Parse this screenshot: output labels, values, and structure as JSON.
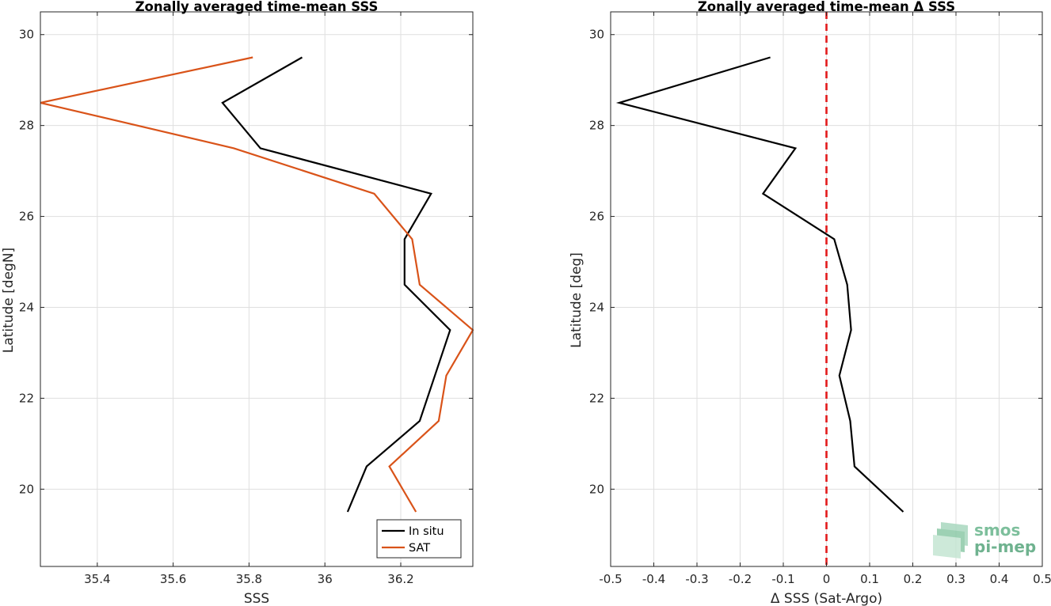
{
  "chart_data": [
    {
      "type": "line",
      "title": "Zonally averaged time-mean SSS",
      "xlabel": "SSS",
      "ylabel": "Latitude [degN]",
      "xlim": [
        35.25,
        36.39
      ],
      "ylim": [
        18.3,
        30.5
      ],
      "xticks": [
        35.4,
        35.6,
        35.8,
        36,
        36.2
      ],
      "xtick_labels": [
        "35.4",
        "35.6",
        "35.8",
        "36",
        "36.2"
      ],
      "yticks": [
        20,
        22,
        24,
        26,
        28,
        30
      ],
      "ytick_labels": [
        "20",
        "22",
        "24",
        "26",
        "28",
        "30"
      ],
      "grid": true,
      "legend_position": "bottom-right",
      "series": [
        {
          "name": "In situ",
          "color": "#000000",
          "x": [
            36.06,
            36.11,
            36.25,
            36.29,
            36.33,
            36.21,
            36.21,
            36.28,
            35.83,
            35.73,
            35.94
          ],
          "y": [
            19.5,
            20.5,
            21.5,
            22.5,
            23.5,
            24.5,
            25.5,
            26.5,
            27.5,
            28.5,
            29.5
          ]
        },
        {
          "name": "SAT",
          "color": "#d95319",
          "x": [
            36.24,
            36.17,
            36.3,
            36.32,
            36.39,
            36.25,
            36.23,
            36.13,
            35.76,
            35.25,
            35.81
          ],
          "y": [
            19.5,
            20.5,
            21.5,
            22.5,
            23.5,
            24.5,
            25.5,
            26.5,
            27.5,
            28.5,
            29.5
          ]
        }
      ]
    },
    {
      "type": "line",
      "title": "Zonally averaged time-mean Δ SSS",
      "xlabel": "Δ SSS (Sat-Argo)",
      "ylabel": "Latitude [deg]",
      "xlim": [
        -0.5,
        0.5
      ],
      "ylim": [
        18.3,
        30.5
      ],
      "xticks": [
        -0.5,
        -0.4,
        -0.3,
        -0.2,
        -0.1,
        0,
        0.1,
        0.2,
        0.3,
        0.4,
        0.5
      ],
      "xtick_labels": [
        "-0.5",
        "-0.4",
        "-0.3",
        "-0.2",
        "-0.1",
        "0",
        "0.1",
        "0.2",
        "0.3",
        "0.4",
        "0.5"
      ],
      "yticks": [
        20,
        22,
        24,
        26,
        28,
        30
      ],
      "ytick_labels": [
        "20",
        "22",
        "24",
        "26",
        "28",
        "30"
      ],
      "grid": true,
      "zero_line_color": "#e31a1c",
      "series": [
        {
          "color": "#000000",
          "x": [
            0.178,
            0.065,
            0.055,
            0.03,
            0.057,
            0.048,
            0.018,
            -0.147,
            -0.072,
            -0.48,
            -0.13
          ],
          "y": [
            19.5,
            20.5,
            21.5,
            22.5,
            23.5,
            24.5,
            25.5,
            26.5,
            27.5,
            28.5,
            29.5
          ]
        }
      ]
    }
  ],
  "logo": {
    "line1": "smos",
    "line2": "pi-mep",
    "color": "#7dbf9c"
  }
}
